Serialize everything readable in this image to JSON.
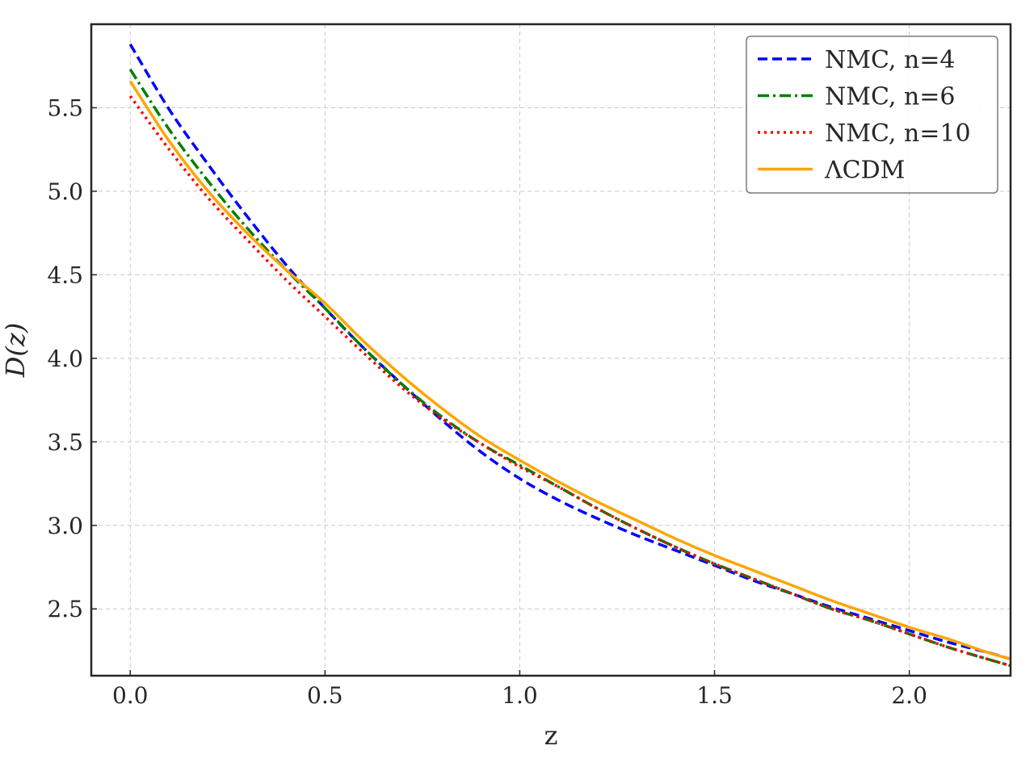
{
  "chart_data": {
    "type": "line",
    "title": "",
    "xlabel": "z",
    "ylabel": "D(z)",
    "xlim": [
      -0.1,
      2.26
    ],
    "ylim": [
      2.1,
      6.0
    ],
    "xticks": [
      0.0,
      0.5,
      1.0,
      1.5,
      2.0
    ],
    "yticks": [
      2.5,
      3.0,
      3.5,
      4.0,
      4.5,
      5.0,
      5.5
    ],
    "xtick_labels": [
      "0.0",
      "0.5",
      "1.0",
      "1.5",
      "2.0"
    ],
    "ytick_labels": [
      "2.5",
      "3.0",
      "3.5",
      "4.0",
      "4.5",
      "5.0",
      "5.5"
    ],
    "grid": true,
    "legend_position": "top-right",
    "series": [
      {
        "name": "NMC, n=4",
        "color": "#0000ff",
        "style": "dashed",
        "x": [
          0.0,
          0.1,
          0.2,
          0.3,
          0.4,
          0.5,
          0.6,
          0.7,
          0.8,
          0.9,
          1.0,
          1.1,
          1.2,
          1.3,
          1.4,
          1.5,
          1.6,
          1.7,
          1.8,
          1.9,
          2.0,
          2.1,
          2.2,
          2.26
        ],
        "y": [
          5.88,
          5.49,
          5.16,
          4.85,
          4.56,
          4.3,
          4.06,
          3.84,
          3.63,
          3.44,
          3.28,
          3.15,
          3.04,
          2.94,
          2.85,
          2.76,
          2.67,
          2.59,
          2.51,
          2.44,
          2.37,
          2.3,
          2.24,
          2.2
        ]
      },
      {
        "name": "NMC, n=6",
        "color": "#008000",
        "style": "dashdot",
        "x": [
          0.0,
          0.1,
          0.2,
          0.3,
          0.4,
          0.5,
          0.6,
          0.7,
          0.8,
          0.9,
          1.0,
          1.1,
          1.2,
          1.3,
          1.4,
          1.5,
          1.6,
          1.7,
          1.8,
          1.9,
          2.0,
          2.1,
          2.2,
          2.26
        ],
        "y": [
          5.73,
          5.37,
          5.06,
          4.78,
          4.53,
          4.3,
          4.06,
          3.84,
          3.65,
          3.49,
          3.36,
          3.23,
          3.1,
          2.98,
          2.87,
          2.77,
          2.68,
          2.59,
          2.5,
          2.43,
          2.35,
          2.27,
          2.2,
          2.16
        ]
      },
      {
        "name": "NMC, n=10",
        "color": "#ff0000",
        "style": "dotted",
        "x": [
          0.0,
          0.1,
          0.2,
          0.3,
          0.4,
          0.5,
          0.6,
          0.7,
          0.8,
          0.9,
          1.0,
          1.1,
          1.2,
          1.3,
          1.4,
          1.5,
          1.6,
          1.7,
          1.8,
          1.9,
          2.0,
          2.1,
          2.2,
          2.26
        ],
        "y": [
          5.57,
          5.25,
          4.96,
          4.71,
          4.47,
          4.25,
          4.03,
          3.82,
          3.64,
          3.49,
          3.35,
          3.23,
          3.1,
          2.98,
          2.87,
          2.77,
          2.68,
          2.59,
          2.5,
          2.43,
          2.35,
          2.27,
          2.2,
          2.16
        ]
      },
      {
        "name": "ΛCDM",
        "color": "#ffa500",
        "style": "solid",
        "x": [
          0.0,
          0.1,
          0.2,
          0.3,
          0.4,
          0.5,
          0.6,
          0.7,
          0.8,
          0.9,
          1.0,
          1.1,
          1.2,
          1.3,
          1.4,
          1.5,
          1.6,
          1.7,
          1.8,
          1.9,
          2.0,
          2.1,
          2.2,
          2.26
        ],
        "y": [
          5.66,
          5.3,
          5.0,
          4.75,
          4.53,
          4.33,
          4.1,
          3.89,
          3.7,
          3.53,
          3.39,
          3.26,
          3.14,
          3.03,
          2.92,
          2.82,
          2.73,
          2.64,
          2.55,
          2.47,
          2.39,
          2.32,
          2.24,
          2.2
        ]
      }
    ]
  }
}
